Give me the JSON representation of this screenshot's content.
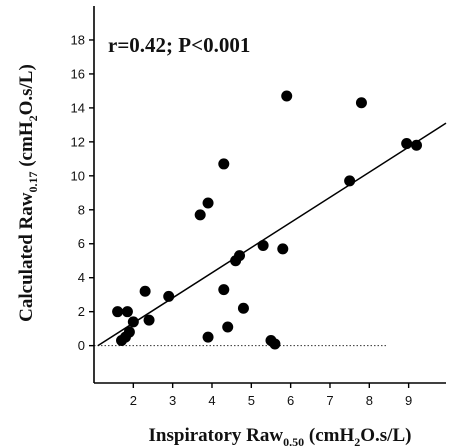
{
  "chart_data": {
    "type": "scatter",
    "annotation": "r=0.42; P<0.001",
    "xlabel": {
      "main": "Inspiratory Raw",
      "sub": "0.50",
      "unit_pre": " (cmH",
      "unit_sub": "2",
      "unit_post": "O.s/L)"
    },
    "ylabel": {
      "main": "Calculated Raw",
      "sub": "0.17",
      "unit_pre": " (cmH",
      "unit_sub": "2",
      "unit_post": "O.s/L)"
    },
    "xlim": [
      1,
      9.95
    ],
    "ylim": [
      -2.2,
      20
    ],
    "x_ticks": [
      2,
      3,
      4,
      5,
      6,
      7,
      8,
      9
    ],
    "y_ticks": [
      0,
      2,
      4,
      6,
      8,
      10,
      12,
      14,
      16,
      18
    ],
    "reference_line_y": 0,
    "regression_line": [
      [
        1.1,
        0
      ],
      [
        9.95,
        13.1
      ]
    ],
    "points": [
      {
        "x": 1.6,
        "y": 2.0
      },
      {
        "x": 1.7,
        "y": 0.3
      },
      {
        "x": 1.8,
        "y": 0.5
      },
      {
        "x": 1.85,
        "y": 2.0
      },
      {
        "x": 1.9,
        "y": 0.8
      },
      {
        "x": 2.0,
        "y": 1.4
      },
      {
        "x": 2.3,
        "y": 3.2
      },
      {
        "x": 2.4,
        "y": 1.5
      },
      {
        "x": 2.9,
        "y": 2.9
      },
      {
        "x": 3.7,
        "y": 7.7
      },
      {
        "x": 3.9,
        "y": 8.4
      },
      {
        "x": 3.9,
        "y": 0.5
      },
      {
        "x": 4.3,
        "y": 10.7
      },
      {
        "x": 4.3,
        "y": 3.3
      },
      {
        "x": 4.4,
        "y": 1.1
      },
      {
        "x": 4.6,
        "y": 5.0
      },
      {
        "x": 4.7,
        "y": 5.3
      },
      {
        "x": 4.8,
        "y": 2.2
      },
      {
        "x": 5.3,
        "y": 5.9
      },
      {
        "x": 5.5,
        "y": 0.3
      },
      {
        "x": 5.6,
        "y": 0.1
      },
      {
        "x": 5.8,
        "y": 5.7
      },
      {
        "x": 5.9,
        "y": 14.7
      },
      {
        "x": 7.5,
        "y": 9.7
      },
      {
        "x": 7.8,
        "y": 14.3
      },
      {
        "x": 8.95,
        "y": 11.9
      },
      {
        "x": 9.2,
        "y": 11.8
      }
    ]
  }
}
